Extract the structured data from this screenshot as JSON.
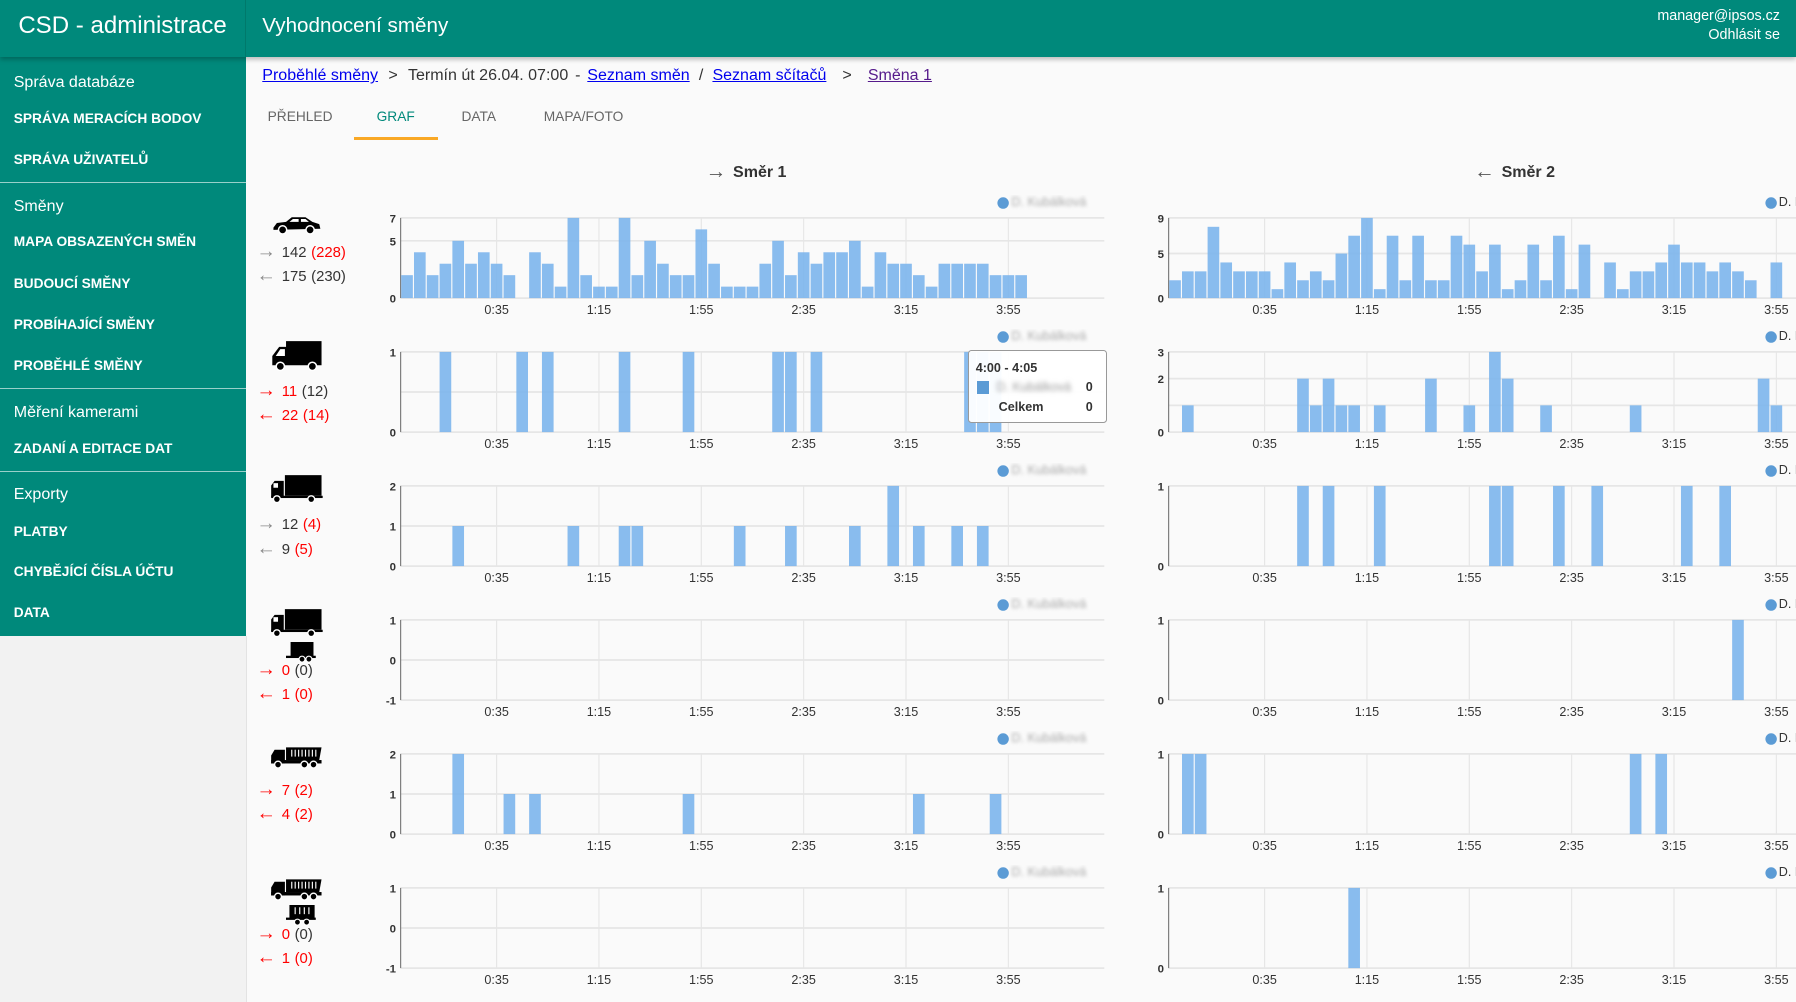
{
  "header": {
    "brand": "CSD - administrace",
    "title": "Vyhodnocení směny",
    "user_email": "manager@ipsos.cz",
    "logout": "Odhlásit se",
    "color": "#00897b"
  },
  "sidebar": {
    "sections": [
      {
        "title": "Správa databáze",
        "items": [
          "SPRÁVA MERACÍCH BODOV",
          "SPRÁVA UŽIVATELŮ"
        ]
      },
      {
        "title": "Směny",
        "items": [
          "MAPA OBSAZENÝCH SMĚN",
          "BUDOUCÍ SMĚNY",
          "PROBÍHAJÍCÍ SMĚNY",
          "PROBĚHLÉ SMĚNY"
        ]
      },
      {
        "title": "Měření kamerami",
        "items": [
          "ZADANÍ A EDITACE DAT"
        ]
      },
      {
        "title": "Exporty",
        "items": [
          "PLATBY",
          "CHYBĚJÍCÍ ČÍSLA ÚČTU",
          "DATA"
        ]
      }
    ]
  },
  "breadcrumb": {
    "link1": "Proběhlé směny",
    "sep1": ">",
    "text": "Termín út 26.04. 07:00",
    "dash": "-",
    "link2": "Seznam směn",
    "slash": "/",
    "link3": "Seznam sčítačů",
    "sep2": ">",
    "link4": "Směna 1"
  },
  "tabs": [
    {
      "label": "PŘEHLED"
    },
    {
      "label": "GRAF",
      "active": true
    },
    {
      "label": "DATA"
    },
    {
      "label": "MAPA/FOTO"
    }
  ],
  "directions": [
    {
      "label": "Směr 1",
      "arrow": "→"
    },
    {
      "label": "Směr 2",
      "arrow": "←"
    }
  ],
  "legend_label": "D. Kubálková",
  "bar_color": "#7cb5ec",
  "chart_data": {
    "type": "bar",
    "bin_start": "0:00",
    "bin_minutes": 5,
    "x_ticks": [
      "0:35",
      "1:15",
      "1:55",
      "2:35",
      "3:15",
      "3:55"
    ],
    "rows": [
      {
        "vehicle": "car",
        "icon": "car-icon",
        "counts": [
          {
            "arrow": "→",
            "arrow_color": "#888",
            "value": "142",
            "value_color": "#333",
            "paren": "(228)",
            "paren_color": "#f00"
          },
          {
            "arrow": "←",
            "arrow_color": "#888",
            "value": "175",
            "value_color": "#333",
            "paren": "(230)",
            "paren_color": "#333"
          }
        ],
        "charts": [
          {
            "y_ticks": [
              0,
              5,
              7
            ],
            "ymin": 0,
            "ymax": 7,
            "values": [
              2,
              4,
              2,
              3,
              5,
              3,
              4,
              3,
              2,
              0,
              4,
              3,
              1,
              7,
              2,
              1,
              1,
              7,
              2,
              5,
              3,
              2,
              2,
              6,
              3,
              1,
              1,
              1,
              3,
              5,
              2,
              4,
              3,
              4,
              4,
              5,
              1,
              4,
              3,
              3,
              2,
              1,
              3,
              3,
              3,
              3,
              2,
              2,
              2
            ]
          },
          {
            "y_ticks": [
              0,
              5,
              9
            ],
            "ymin": 0,
            "ymax": 9,
            "values": [
              2,
              3,
              3,
              8,
              4,
              3,
              3,
              3,
              1,
              4,
              2,
              3,
              2,
              5,
              7,
              9,
              1,
              7,
              2,
              7,
              2,
              2,
              7,
              6,
              3,
              6,
              1,
              2,
              6,
              2,
              7,
              1,
              6,
              0,
              4,
              1,
              3,
              3,
              4,
              6,
              4,
              4,
              3,
              4,
              3,
              2,
              0,
              4
            ]
          }
        ]
      },
      {
        "vehicle": "van",
        "icon": "van-icon",
        "counts": [
          {
            "arrow": "→",
            "arrow_color": "#f00",
            "value": "11",
            "value_color": "#f00",
            "paren": "(12)",
            "paren_color": "#333"
          },
          {
            "arrow": "←",
            "arrow_color": "#f00",
            "value": "22",
            "value_color": "#f00",
            "paren": "(14)",
            "paren_color": "#f00"
          }
        ],
        "charts": [
          {
            "y_ticks": [
              0,
              1
            ],
            "grid_extra": [
              0.5
            ],
            "ymin": 0,
            "ymax": 1,
            "bars": [
              [
                "0:15",
                1
              ],
              [
                "0:45",
                1
              ],
              [
                "0:55",
                1
              ],
              [
                "1:25",
                1
              ],
              [
                "1:50",
                1
              ],
              [
                "2:25",
                1
              ],
              [
                "2:30",
                1
              ],
              [
                "2:40",
                1
              ],
              [
                "3:40",
                1
              ],
              [
                "3:45",
                1
              ],
              [
                "3:50",
                1
              ]
            ]
          },
          {
            "y_ticks": [
              0,
              2,
              3
            ],
            "grid_extra": [
              1
            ],
            "ymin": 0,
            "ymax": 3,
            "bars": [
              [
                "0:05",
                1
              ],
              [
                "0:50",
                2
              ],
              [
                "0:55",
                1
              ],
              [
                "1:00",
                2
              ],
              [
                "1:05",
                1
              ],
              [
                "1:10",
                1
              ],
              [
                "1:20",
                1
              ],
              [
                "1:40",
                2
              ],
              [
                "1:55",
                1
              ],
              [
                "2:05",
                3
              ],
              [
                "2:10",
                2
              ],
              [
                "2:25",
                1
              ],
              [
                "3:00",
                1
              ],
              [
                "3:50",
                2
              ],
              [
                "3:55",
                1
              ]
            ]
          }
        ]
      },
      {
        "vehicle": "truck",
        "icon": "truck-icon",
        "counts": [
          {
            "arrow": "→",
            "arrow_color": "#888",
            "value": "12",
            "value_color": "#333",
            "paren": "(4)",
            "paren_color": "#f00"
          },
          {
            "arrow": "←",
            "arrow_color": "#888",
            "value": "9",
            "value_color": "#333",
            "paren": "(5)",
            "paren_color": "#f00"
          }
        ],
        "charts": [
          {
            "y_ticks": [
              0,
              1,
              2
            ],
            "ymin": 0,
            "ymax": 2,
            "bars": [
              [
                "0:20",
                1
              ],
              [
                "1:05",
                1
              ],
              [
                "1:25",
                1
              ],
              [
                "1:30",
                1
              ],
              [
                "2:10",
                1
              ],
              [
                "2:30",
                1
              ],
              [
                "2:55",
                1
              ],
              [
                "3:10",
                2
              ],
              [
                "3:20",
                1
              ],
              [
                "3:35",
                1
              ],
              [
                "3:45",
                1
              ]
            ]
          },
          {
            "y_ticks": [
              0,
              1
            ],
            "ymin": 0,
            "ymax": 1,
            "bars": [
              [
                "0:50",
                1
              ],
              [
                "1:00",
                1
              ],
              [
                "1:20",
                1
              ],
              [
                "2:05",
                1
              ],
              [
                "2:10",
                1
              ],
              [
                "2:30",
                1
              ],
              [
                "2:45",
                1
              ],
              [
                "3:20",
                1
              ],
              [
                "3:35",
                1
              ]
            ]
          }
        ]
      },
      {
        "vehicle": "truck-with-trailer",
        "icon": "truck-trailer-icon",
        "counts": [
          {
            "arrow": "→",
            "arrow_color": "#f00",
            "value": "0",
            "value_color": "#f00",
            "paren": "(0)",
            "paren_color": "#333"
          },
          {
            "arrow": "←",
            "arrow_color": "#f00",
            "value": "1",
            "value_color": "#f00",
            "paren": "(0)",
            "paren_color": "#f00"
          }
        ],
        "charts": [
          {
            "y_ticks": [
              -1,
              0,
              1
            ],
            "ymin": -1,
            "ymax": 1,
            "bars": []
          },
          {
            "y_ticks": [
              0,
              1
            ],
            "ymin": 0,
            "ymax": 1,
            "bars": [
              [
                "3:40",
                1
              ]
            ]
          }
        ]
      },
      {
        "vehicle": "dump-truck",
        "icon": "dump-truck-icon",
        "counts": [
          {
            "arrow": "→",
            "arrow_color": "#f00",
            "value": "7",
            "value_color": "#f00",
            "paren": "(2)",
            "paren_color": "#f00"
          },
          {
            "arrow": "←",
            "arrow_color": "#f00",
            "value": "4",
            "value_color": "#f00",
            "paren": "(2)",
            "paren_color": "#f00"
          }
        ],
        "charts": [
          {
            "y_ticks": [
              0,
              1,
              2
            ],
            "ymin": 0,
            "ymax": 2,
            "bars": [
              [
                "0:20",
                2
              ],
              [
                "0:40",
                1
              ],
              [
                "0:50",
                1
              ],
              [
                "1:50",
                1
              ],
              [
                "3:20",
                1
              ],
              [
                "3:50",
                1
              ]
            ]
          },
          {
            "y_ticks": [
              0,
              1
            ],
            "ymin": 0,
            "ymax": 1,
            "bars": [
              [
                "0:05",
                1
              ],
              [
                "0:10",
                1
              ],
              [
                "3:00",
                1
              ],
              [
                "3:10",
                1
              ]
            ]
          }
        ]
      },
      {
        "vehicle": "dump-truck-with-trailer",
        "icon": "dump-truck-trailer-icon",
        "counts": [
          {
            "arrow": "→",
            "arrow_color": "#f00",
            "value": "0",
            "value_color": "#f00",
            "paren": "(0)",
            "paren_color": "#333"
          },
          {
            "arrow": "←",
            "arrow_color": "#f00",
            "value": "1",
            "value_color": "#f00",
            "paren": "(0)",
            "paren_color": "#f00"
          }
        ],
        "charts": [
          {
            "y_ticks": [
              -1,
              0,
              1
            ],
            "ymin": -1,
            "ymax": 1,
            "bars": []
          },
          {
            "y_ticks": [
              0,
              1
            ],
            "ymin": 0,
            "ymax": 1,
            "bars": [
              [
                "1:10",
                1
              ]
            ]
          }
        ]
      }
    ]
  },
  "tooltip": {
    "range": "4:00 - 4:05",
    "series": "D. Kubálková",
    "series_value": "0",
    "total_label": "Celkem",
    "total_value": "0"
  }
}
